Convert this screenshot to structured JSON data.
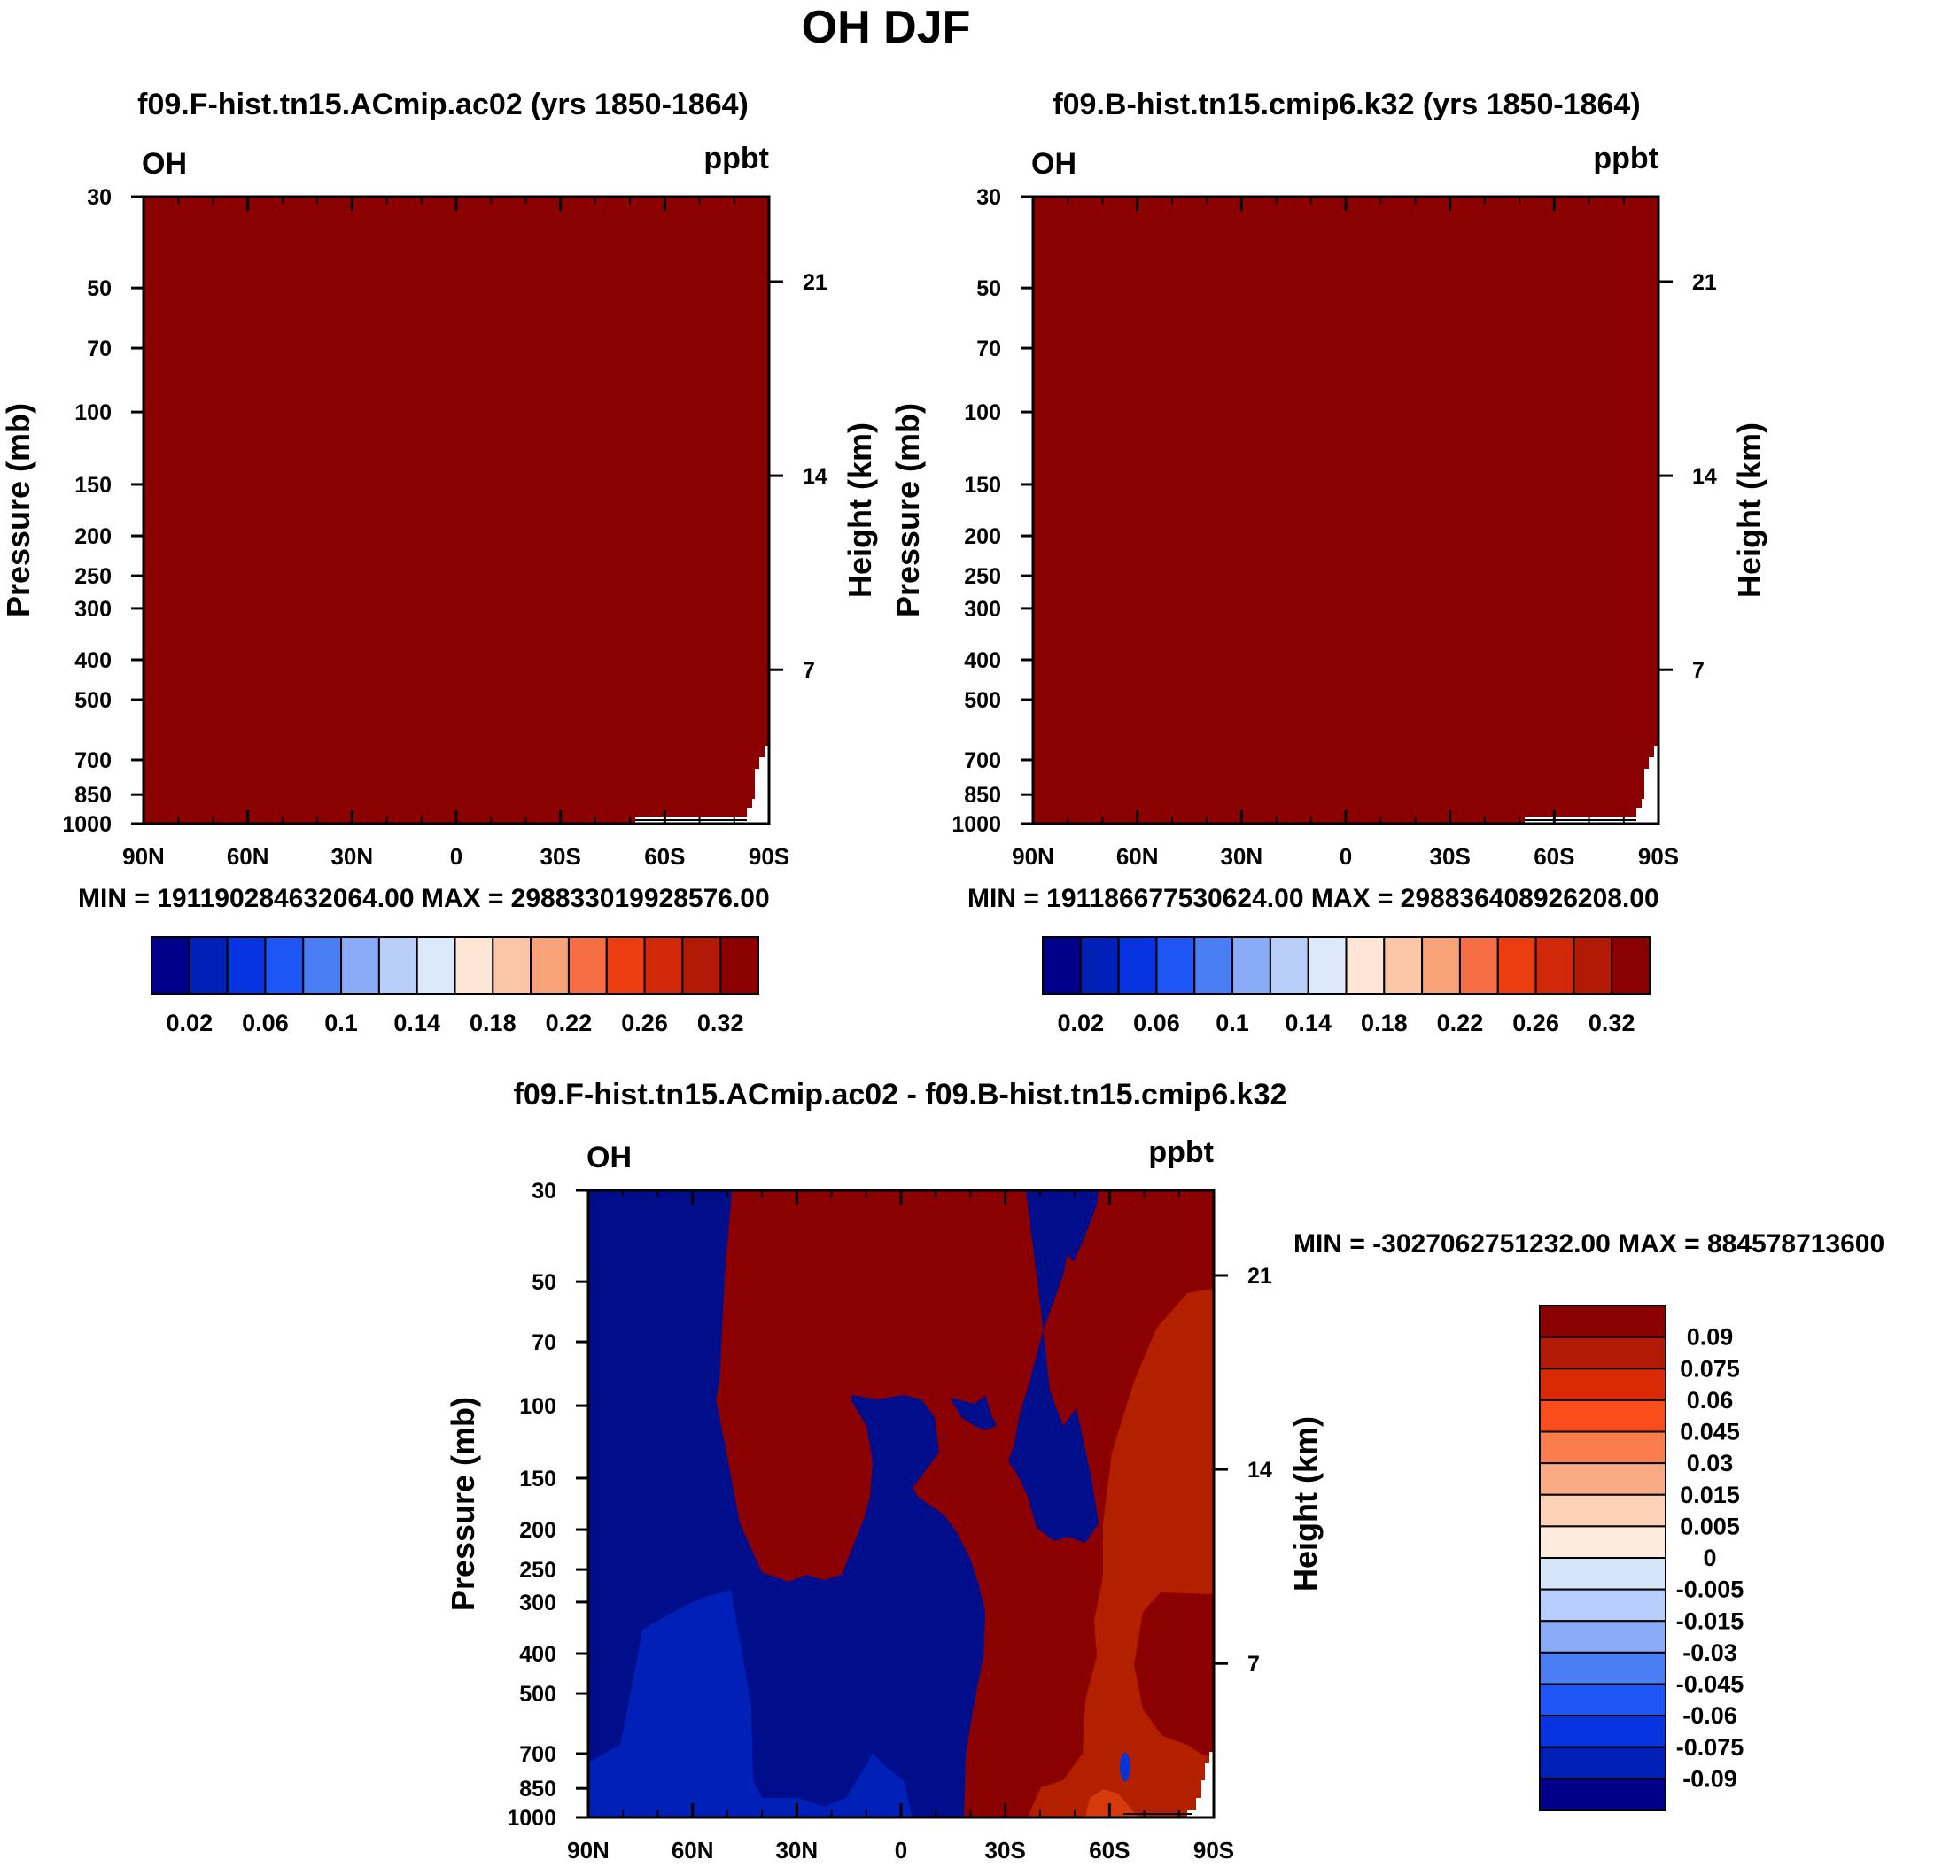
{
  "page_title": "OH DJF",
  "colors": {
    "fill_dark_red": "#8b0000",
    "fill_red": "#b32000",
    "fill_orange": "#d63a0a",
    "fill_navy": "#000e8c",
    "fill_blue": "#0020b8",
    "fill_mid_blue": "#0634d6",
    "white": "#ffffff"
  },
  "chart_data": [
    {
      "id": "panel1",
      "type": "contour",
      "title": "f09.F-hist.tn15.ACmip.ac02 (yrs 1850-1864)",
      "left_label": "OH",
      "right_label": "ppbt",
      "ylabel": "Pressure (mb)",
      "y2label": "Height (km)",
      "x_ticks": [
        "90N",
        "60N",
        "30N",
        "0",
        "30S",
        "60S",
        "90S"
      ],
      "x_values": [
        90,
        60,
        30,
        0,
        -30,
        -60,
        -90
      ],
      "y_ticks": [
        "30",
        "50",
        "70",
        "100",
        "150",
        "200",
        "250",
        "300",
        "400",
        "500",
        "700",
        "850",
        "1000"
      ],
      "y_values": [
        30,
        50,
        70,
        100,
        150,
        200,
        250,
        300,
        400,
        500,
        700,
        850,
        1000
      ],
      "y2_ticks": [
        "21",
        "14",
        "7"
      ],
      "y2_values": [
        21,
        14,
        7
      ],
      "ylim": [
        1000,
        30
      ],
      "xlim": [
        90,
        -90
      ],
      "min_max": "MIN = 19119028463206‍4.00   MAX = 29883301992857‍6.00",
      "colorbar_labels": [
        "0.02",
        "0.06",
        "0.1",
        "0.14",
        "0.18",
        "0.22",
        "0.26",
        "0.32"
      ],
      "colorbar_colors": [
        "#00008b",
        "#0020b8",
        "#0534e0",
        "#1e55f5",
        "#4a7ef5",
        "#8aabf7",
        "#b8cdf8",
        "#dbe9fb",
        "#fde6d5",
        "#fbc5a8",
        "#f8a27a",
        "#f56e44",
        "#ec3d10",
        "#d02808",
        "#b21a05",
        "#8b0000"
      ],
      "field_note": "uniform max shading"
    },
    {
      "id": "panel2",
      "type": "contour",
      "title": "f09.B-hist.tn15.cmip6.k32 (yrs 1850-1864)",
      "left_label": "OH",
      "right_label": "ppbt",
      "ylabel": "Pressure (mb)",
      "y2label": "Height (km)",
      "x_ticks": [
        "90N",
        "60N",
        "30N",
        "0",
        "30S",
        "60S",
        "90S"
      ],
      "x_values": [
        90,
        60,
        30,
        0,
        -30,
        -60,
        -90
      ],
      "y_ticks": [
        "30",
        "50",
        "70",
        "100",
        "150",
        "200",
        "250",
        "300",
        "400",
        "500",
        "700",
        "850",
        "1000"
      ],
      "y_values": [
        30,
        50,
        70,
        100,
        150,
        200,
        250,
        300,
        400,
        500,
        700,
        850,
        1000
      ],
      "y2_ticks": [
        "21",
        "14",
        "7"
      ],
      "y2_values": [
        21,
        14,
        7
      ],
      "ylim": [
        1000,
        30
      ],
      "xlim": [
        90,
        -90
      ],
      "min_max": "MIN = 19118667753062‍4.00   MAX = 29883640892620‍8.00",
      "colorbar_labels": [
        "0.02",
        "0.06",
        "0.1",
        "0.14",
        "0.18",
        "0.22",
        "0.26",
        "0.32"
      ],
      "colorbar_colors": [
        "#00008b",
        "#0020b8",
        "#0534e0",
        "#1e55f5",
        "#4a7ef5",
        "#8aabf7",
        "#b8cdf8",
        "#dbe9fb",
        "#fde6d5",
        "#fbc5a8",
        "#f8a27a",
        "#f56e44",
        "#ec3d10",
        "#d02808",
        "#b21a05",
        "#8b0000"
      ],
      "field_note": "uniform max shading"
    },
    {
      "id": "panel3",
      "type": "contour",
      "title": "f09.F-hist.tn15.ACmip.ac02 - f09.B-hist.tn15.cmip6.k32",
      "left_label": "OH",
      "right_label": "ppbt",
      "ylabel": "Pressure (mb)",
      "y2label": "Height (km)",
      "x_ticks": [
        "90N",
        "60N",
        "30N",
        "0",
        "30S",
        "60S",
        "90S"
      ],
      "x_values": [
        90,
        60,
        30,
        0,
        -30,
        -60,
        -90
      ],
      "y_ticks": [
        "30",
        "50",
        "70",
        "100",
        "150",
        "200",
        "250",
        "300",
        "400",
        "500",
        "700",
        "850",
        "1000"
      ],
      "y_values": [
        30,
        50,
        70,
        100,
        150,
        200,
        250,
        300,
        400,
        500,
        700,
        850,
        1000
      ],
      "y2_ticks": [
        "21",
        "14",
        "7"
      ],
      "y2_values": [
        21,
        14,
        7
      ],
      "ylim": [
        1000,
        30
      ],
      "xlim": [
        90,
        -90
      ],
      "min_max": "MIN = -3027062751232.00   MAX = 884578713600",
      "colorbar_labels": [
        "0.09",
        "0.075",
        "0.06",
        "0.045",
        "0.03",
        "0.015",
        "0.005",
        "0",
        "-0.005",
        "-0.015",
        "-0.03",
        "-0.045",
        "-0.06",
        "-0.075",
        "-0.09"
      ],
      "colorbar_colors": [
        "#8b0000",
        "#b21a05",
        "#d92a05",
        "#fb4d1c",
        "#fb7c4c",
        "#fbab83",
        "#fcd1b6",
        "#fdebdd",
        "#d6e6fa",
        "#b7cdfb",
        "#8aabf7",
        "#4a7ef5",
        "#1e55f5",
        "#0534e0",
        "#0020b8",
        "#00008b"
      ]
    }
  ]
}
